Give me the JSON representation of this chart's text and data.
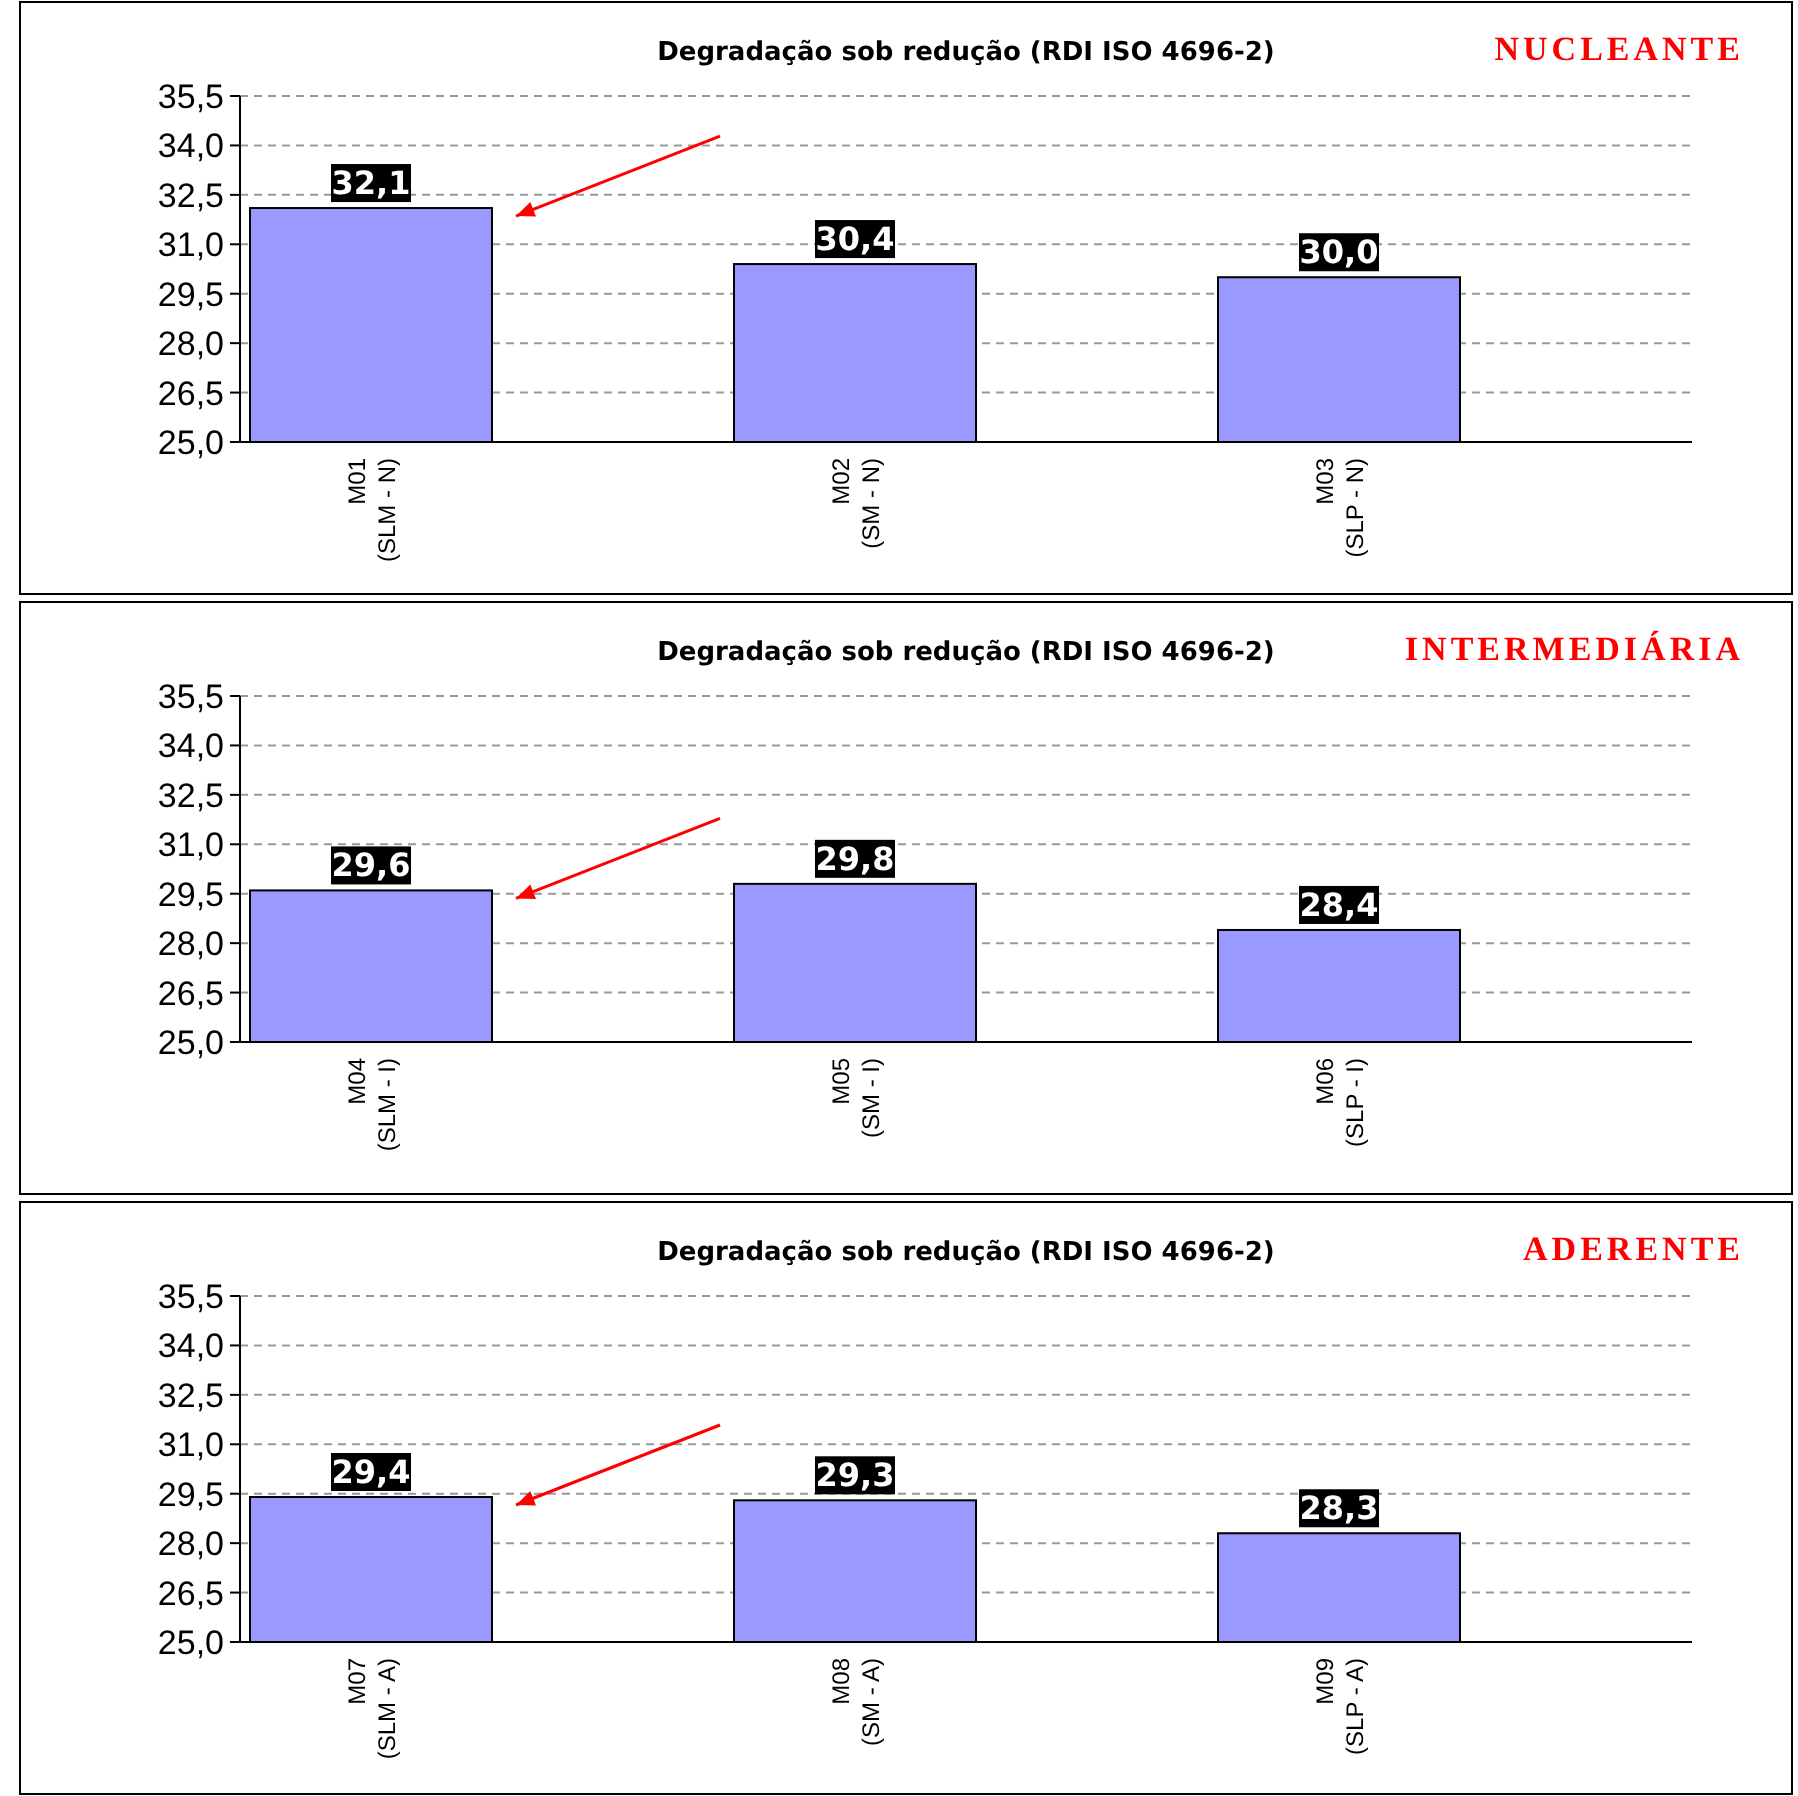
{
  "chart_data": [
    {
      "type": "bar",
      "title": "Degradação sob redução (RDI ISO 4696-2)",
      "subtitle": "NUCLEANTE",
      "categories": [
        "M01 (SLM - N)",
        "M02 (SM - N)",
        "M03 (SLP - N)"
      ],
      "values": [
        32.1,
        30.4,
        30.0
      ],
      "value_labels": [
        "32,1",
        "30,4",
        "30,0"
      ],
      "color": "#9999ff",
      "ylim": [
        25,
        35.5
      ],
      "yticks": [
        {
          "value": 25,
          "label": "25,0"
        },
        {
          "value": 26.5,
          "label": "26,5"
        },
        {
          "value": 28,
          "label": "28,0"
        },
        {
          "value": 29.5,
          "label": "29,5"
        },
        {
          "value": 31,
          "label": "31,0"
        },
        {
          "value": 32.5,
          "label": "32,5"
        },
        {
          "value": 34,
          "label": "34,0"
        },
        {
          "value": 35.5,
          "label": "35,5"
        }
      ],
      "grid": "y"
    },
    {
      "type": "bar",
      "title": "Degradação sob redução (RDI ISO 4696-2)",
      "subtitle": "INTERMEDIÁRIA",
      "categories": [
        "M04 (SLM - I)",
        "M05 (SM - I)",
        "M06 (SLP - I)"
      ],
      "values": [
        29.6,
        29.8,
        28.4
      ],
      "value_labels": [
        "29,6",
        "29,8",
        "28,4"
      ],
      "color": "#9999ff",
      "ylim": [
        25,
        35.5
      ],
      "yticks": [
        {
          "value": 25,
          "label": "25,0"
        },
        {
          "value": 26.5,
          "label": "26,5"
        },
        {
          "value": 28,
          "label": "28,0"
        },
        {
          "value": 29.5,
          "label": "29,5"
        },
        {
          "value": 31,
          "label": "31,0"
        },
        {
          "value": 32.5,
          "label": "32,5"
        },
        {
          "value": 34,
          "label": "34,0"
        },
        {
          "value": 35.5,
          "label": "35,5"
        }
      ],
      "grid": "y"
    },
    {
      "type": "bar",
      "title": "Degradação sob redução (RDI ISO 4696-2)",
      "subtitle": "ADERENTE",
      "categories": [
        "M07 (SLM - A)",
        "M08 (SM - A)",
        "M09 (SLP - A)"
      ],
      "values": [
        29.4,
        29.3,
        28.3
      ],
      "value_labels": [
        "29,4",
        "29,3",
        "28,3"
      ],
      "color": "#9999ff",
      "ylim": [
        25,
        35.5
      ],
      "yticks": [
        {
          "value": 25,
          "label": "25,0"
        },
        {
          "value": 26.5,
          "label": "26,5"
        },
        {
          "value": 28,
          "label": "28,0"
        },
        {
          "value": 29.5,
          "label": "29,5"
        },
        {
          "value": 31,
          "label": "31,0"
        },
        {
          "value": 32.5,
          "label": "32,5"
        },
        {
          "value": 34,
          "label": "34,0"
        },
        {
          "value": 35.5,
          "label": "35,5"
        }
      ],
      "grid": "y"
    }
  ]
}
